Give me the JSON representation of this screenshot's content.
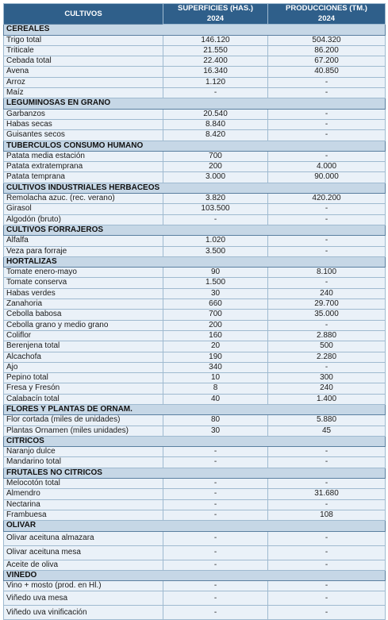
{
  "header": {
    "crops_label": "CULTIVOS",
    "area_label": "SUPERFICIES (HAS.)",
    "prod_label": "PRODUCCIONES (TM.)",
    "area_year": "2024",
    "prod_year": "2024"
  },
  "sections": [
    {
      "title": "CEREALES",
      "rows": [
        {
          "name": "Trigo total",
          "area": "146.120",
          "prod": "504.320"
        },
        {
          "name": "Triticale",
          "area": "21.550",
          "prod": "86.200"
        },
        {
          "name": "Cebada total",
          "area": "22.400",
          "prod": "67.200"
        },
        {
          "name": "Avena",
          "area": "16.340",
          "prod": "40.850"
        },
        {
          "name": "Arroz",
          "area": "1.120",
          "prod": "-"
        },
        {
          "name": "Maíz",
          "area": "-",
          "prod": "-"
        }
      ]
    },
    {
      "title": "LEGUMINOSAS EN GRANO",
      "rows": [
        {
          "name": "Garbanzos",
          "area": "20.540",
          "prod": "-"
        },
        {
          "name": "Habas secas",
          "area": "8.840",
          "prod": "-"
        },
        {
          "name": "Guisantes secos",
          "area": "8.420",
          "prod": "-"
        }
      ]
    },
    {
      "title": "TUBÉRCULOS CONSUMO HUMANO",
      "rows": [
        {
          "name": "Patata media estación",
          "area": "700",
          "prod": "-"
        },
        {
          "name": "Patata extratemprana",
          "area": "200",
          "prod": "4.000"
        },
        {
          "name": "Patata temprana",
          "area": "3.000",
          "prod": "90.000"
        }
      ]
    },
    {
      "title": "CULTIVOS INDUSTRIALES HERBÁCEOS",
      "rows": [
        {
          "name": "Remolacha azuc. (rec. verano)",
          "area": "3.820",
          "prod": "420.200"
        },
        {
          "name": "Girasol",
          "area": "103.500",
          "prod": "-"
        },
        {
          "name": "Algodón (bruto)",
          "area": "-",
          "prod": "-"
        }
      ]
    },
    {
      "title": "CULTIVOS FORRAJEROS",
      "rows": [
        {
          "name": "Alfalfa",
          "area": "1.020",
          "prod": "-"
        },
        {
          "name": "Veza para forraje",
          "area": "3.500",
          "prod": "-"
        }
      ]
    },
    {
      "title": "HORTALIZAS",
      "rows": [
        {
          "name": "Tomate enero-mayo",
          "area": "90",
          "prod": "8.100"
        },
        {
          "name": "Tomate conserva",
          "area": "1.500",
          "prod": "-"
        },
        {
          "name": "Habas verdes",
          "area": "30",
          "prod": "240"
        },
        {
          "name": "Zanahoria",
          "area": "660",
          "prod": "29.700"
        },
        {
          "name": "Cebolla babosa",
          "area": "700",
          "prod": "35.000"
        },
        {
          "name": "Cebolla grano y medio grano",
          "area": "200",
          "prod": "-"
        },
        {
          "name": "Coliflor",
          "area": "160",
          "prod": "2.880"
        },
        {
          "name": "Berenjena total",
          "area": "20",
          "prod": "500"
        },
        {
          "name": "Alcachofa",
          "area": "190",
          "prod": "2.280"
        },
        {
          "name": "Ajo",
          "area": "340",
          "prod": "-"
        },
        {
          "name": "Pepino total",
          "area": "10",
          "prod": "300"
        },
        {
          "name": "Fresa y Fresón",
          "area": "8",
          "prod": "240"
        },
        {
          "name": "Calabacín total",
          "area": "40",
          "prod": "1.400"
        }
      ]
    },
    {
      "title": "FLORES Y PLANTAS DE ORNAM.",
      "rows": [
        {
          "name": "Flor cortada (miles de unidades)",
          "area": "80",
          "prod": "5.880"
        },
        {
          "name": "Plantas Ornamen (miles unidades)",
          "area": "30",
          "prod": "45"
        }
      ]
    },
    {
      "title": "CÍTRICOS",
      "rows": [
        {
          "name": "Naranjo dulce",
          "area": "-",
          "prod": "-"
        },
        {
          "name": "Mandarino total",
          "area": "-",
          "prod": "-"
        }
      ]
    },
    {
      "title": "FRUTALES NO CÍTRICOS",
      "rows": [
        {
          "name": "Melocotón total",
          "area": "-",
          "prod": "-"
        },
        {
          "name": "Almendro",
          "area": "-",
          "prod": "31.680"
        },
        {
          "name": "Nectarina",
          "area": "-",
          "prod": "-"
        },
        {
          "name": "Frambuesa",
          "area": "-",
          "prod": "108"
        }
      ]
    },
    {
      "title": "OLIVAR",
      "rows": [
        {
          "name": "Olivar aceituna almazara",
          "area": "-",
          "prod": "-",
          "tall": true
        },
        {
          "name": "Olivar aceituna mesa",
          "area": "-",
          "prod": "-",
          "tall": true
        },
        {
          "name": "Aceite de oliva",
          "area": "-",
          "prod": "-"
        }
      ]
    },
    {
      "title": "VIÑEDO",
      "rows": [
        {
          "name": "Vino + mosto (prod. en Hl.)",
          "area": "-",
          "prod": "-"
        },
        {
          "name": "Viñedo uva mesa",
          "area": "-",
          "prod": "-",
          "tall": true
        },
        {
          "name": "Viñedo uva vinificación",
          "area": "-",
          "prod": "-",
          "tall": true
        }
      ]
    }
  ]
}
